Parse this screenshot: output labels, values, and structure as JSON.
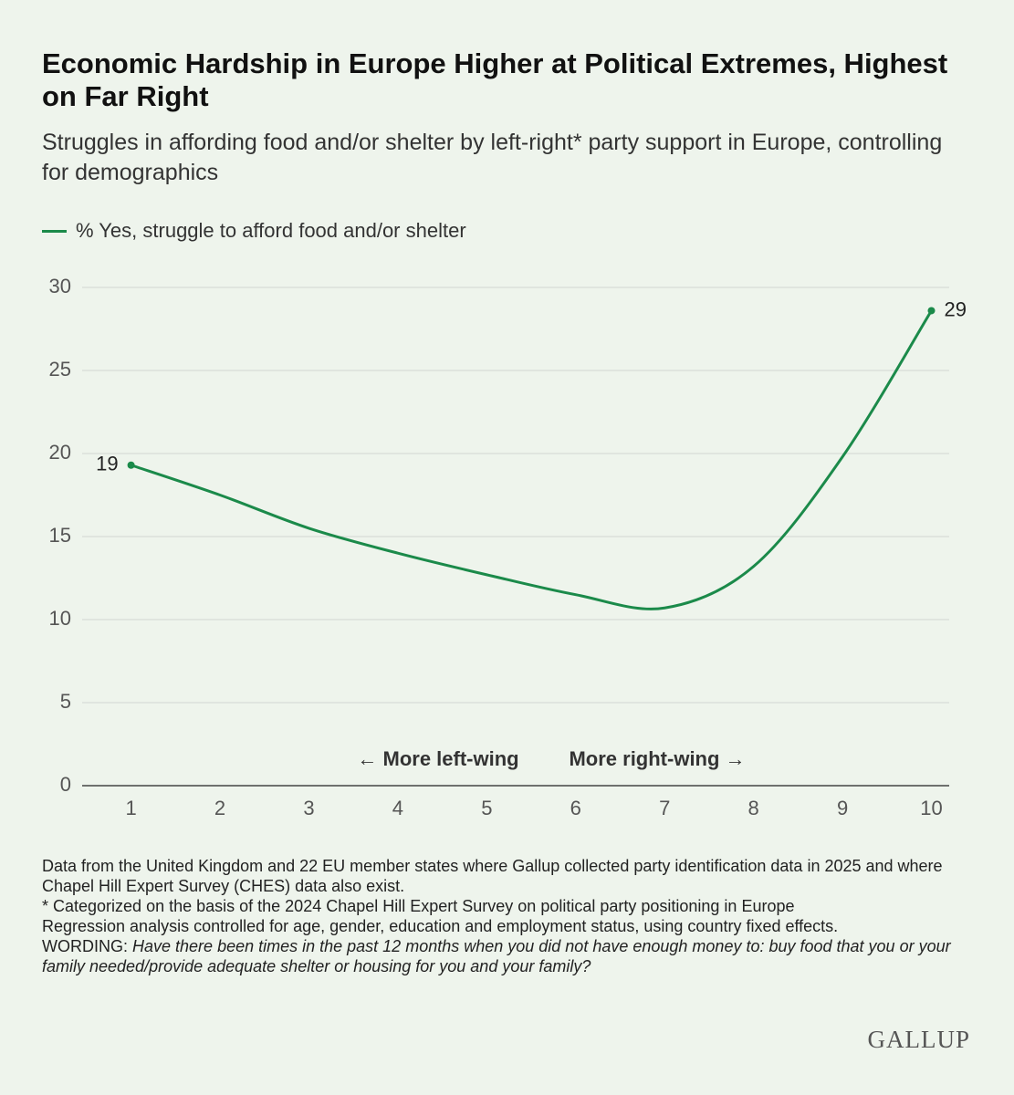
{
  "chart_data": {
    "type": "line",
    "title": "Economic Hardship in Europe Higher at Political Extremes, Highest on Far Right",
    "subtitle": "Struggles in affording food and/or shelter by left-right* party support in Europe, controlling for demographics",
    "x": [
      1,
      2,
      3,
      4,
      5,
      6,
      7,
      8,
      9,
      10
    ],
    "xlim": [
      0.45,
      10.2
    ],
    "xticks": [
      1,
      2,
      3,
      4,
      5,
      6,
      7,
      8,
      9,
      10
    ],
    "ylim": [
      0,
      30
    ],
    "yticks": [
      0,
      5,
      10,
      15,
      20,
      25,
      30
    ],
    "grid": true,
    "series": [
      {
        "name": "% Yes, struggle to afford food and/or shelter",
        "color": "#1b8a4a",
        "values": [
          19.3,
          17.5,
          15.5,
          14.0,
          12.7,
          11.5,
          10.7,
          13.2,
          19.8,
          28.6
        ],
        "value_labels": [
          "19",
          null,
          null,
          null,
          null,
          null,
          null,
          null,
          null,
          "29"
        ]
      }
    ],
    "annotations": [
      "← More left-wing",
      "More right-wing →"
    ],
    "notes": [
      "Data from the United Kingdom and 22 EU member states where Gallup collected party identification data in 2025 and where Chapel Hill Expert Survey (CHES) data also exist.",
      "* Categorized on the basis of the 2024 Chapel Hill Expert Survey on political party positioning in Europe",
      "Regression analysis controlled for age, gender, education and employment status, using country fixed effects."
    ],
    "wording": {
      "label": "WORDING:",
      "text": "Have there been times in the past 12 months when you did not have enough money to: buy food that you or your family needed/provide adequate shelter or housing for you and your family?"
    },
    "source": "GALLUP"
  }
}
